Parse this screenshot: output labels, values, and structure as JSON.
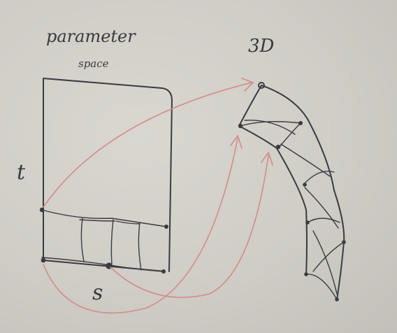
{
  "labels": {
    "parameter": "parameter",
    "space": "space",
    "three_d": "3D",
    "t_axis": "t",
    "s_axis": "s"
  },
  "colors": {
    "paper": "#cfcdc6",
    "ink": "#3b3b3f",
    "arrow": "#d58a8a"
  }
}
